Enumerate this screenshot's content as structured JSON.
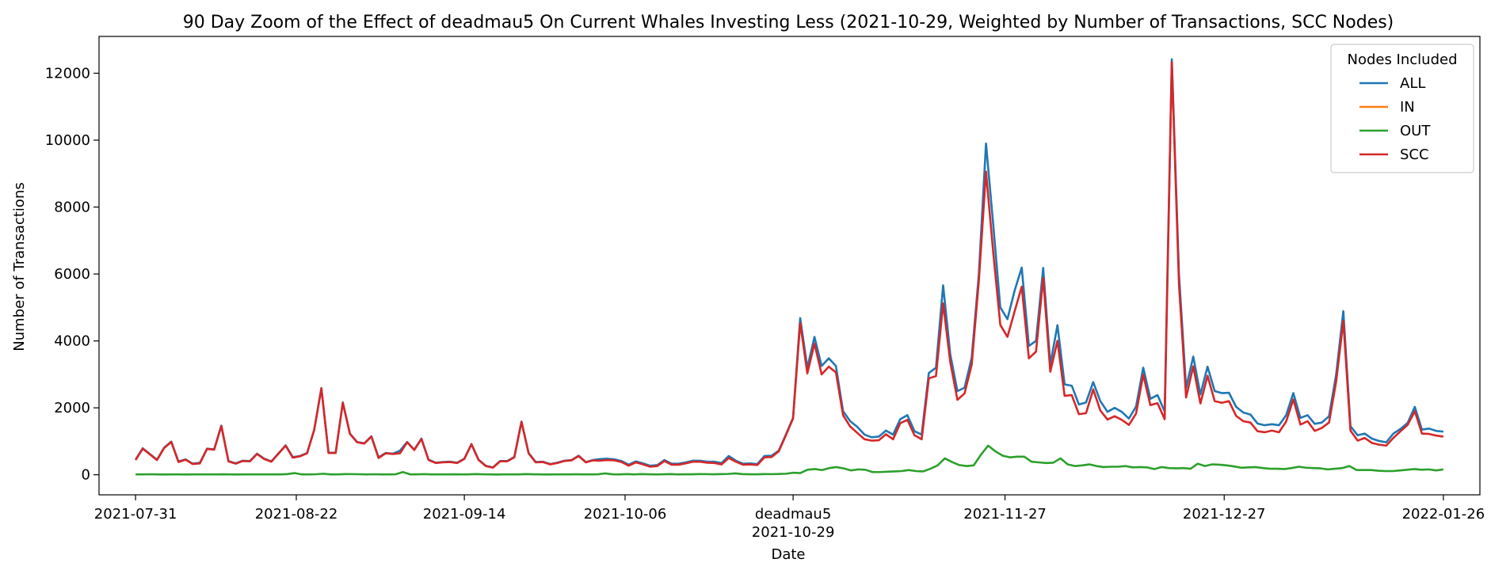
{
  "chart_data": {
    "type": "line",
    "title": "90 Day Zoom of the Effect of deadmau5 On Current Whales Investing Less (2021-10-29, Weighted by Number of Transactions, SCC Nodes)",
    "xlabel": "Date",
    "ylabel": "Number of Transactions",
    "x_start": "2021-07-31",
    "x_end": "2022-01-26",
    "xlim": [
      "2021-07-26",
      "2022-01-31"
    ],
    "ylim": [
      -600,
      13100
    ],
    "x_ticks": [
      {
        "date": "2021-07-31",
        "label": "2021-07-31"
      },
      {
        "date": "2021-08-22",
        "label": "2021-08-22"
      },
      {
        "date": "2021-09-14",
        "label": "2021-09-14"
      },
      {
        "date": "2021-10-06",
        "label": "2021-10-06"
      },
      {
        "date": "2021-10-29",
        "label": "deadmau5",
        "label2": "2021-10-29"
      },
      {
        "date": "2021-11-27",
        "label": "2021-11-27"
      },
      {
        "date": "2021-12-27",
        "label": "2021-12-27"
      },
      {
        "date": "2022-01-26",
        "label": "2022-01-26"
      }
    ],
    "y_ticks": [
      0,
      2000,
      4000,
      6000,
      8000,
      10000,
      12000
    ],
    "grid": false,
    "legend": {
      "title": "Nodes Included",
      "placement": "top-right"
    },
    "series": [
      {
        "name": "ALL",
        "color": "#1f77b4",
        "values": [
          450,
          790,
          620,
          450,
          810,
          990,
          400,
          460,
          330,
          360,
          780,
          760,
          1470,
          410,
          340,
          420,
          410,
          630,
          480,
          400,
          640,
          880,
          530,
          560,
          650,
          1350,
          2590,
          660,
          660,
          2160,
          1230,
          980,
          940,
          1150,
          520,
          650,
          630,
          720,
          980,
          750,
          1080,
          450,
          360,
          380,
          390,
          360,
          480,
          920,
          450,
          270,
          220,
          410,
          410,
          530,
          1590,
          650,
          380,
          390,
          320,
          360,
          420,
          440,
          570,
          380,
          440,
          470,
          480,
          460,
          410,
          300,
          400,
          340,
          270,
          290,
          440,
          330,
          330,
          370,
          420,
          420,
          390,
          390,
          350,
          560,
          420,
          330,
          340,
          320,
          560,
          570,
          720,
          1200,
          1700,
          4680,
          3200,
          4120,
          3250,
          3480,
          3250,
          1900,
          1600,
          1430,
          1200,
          1120,
          1140,
          1320,
          1200,
          1660,
          1780,
          1300,
          1200,
          3040,
          3200,
          5660,
          3600,
          2500,
          2600,
          3500,
          6000,
          9900,
          7500,
          5000,
          4650,
          5500,
          6190,
          3850,
          4000,
          6180,
          3300,
          4470,
          2700,
          2660,
          2100,
          2160,
          2770,
          2200,
          1880,
          2000,
          1880,
          1680,
          2040,
          3200,
          2270,
          2380,
          1890,
          12420,
          6000,
          2600,
          3530,
          2400,
          3230,
          2500,
          2440,
          2450,
          2030,
          1860,
          1800,
          1530,
          1480,
          1510,
          1480,
          1780,
          2440,
          1700,
          1780,
          1520,
          1560,
          1750,
          3000,
          4890,
          1450,
          1180,
          1230,
          1080,
          1010,
          970,
          1230,
          1370,
          1550,
          2030,
          1350,
          1380,
          1310,
          1290
        ]
      },
      {
        "name": "IN",
        "color": "#ff7f0e",
        "values": []
      },
      {
        "name": "OUT",
        "color": "#2ca02c",
        "values": [
          10,
          12,
          15,
          10,
          8,
          12,
          10,
          8,
          10,
          12,
          10,
          10,
          14,
          10,
          8,
          10,
          12,
          10,
          12,
          10,
          12,
          20,
          50,
          10,
          10,
          15,
          30,
          10,
          12,
          20,
          18,
          15,
          12,
          15,
          10,
          12,
          14,
          80,
          12,
          14,
          18,
          12,
          10,
          12,
          14,
          10,
          12,
          20,
          14,
          10,
          8,
          10,
          10,
          12,
          20,
          14,
          10,
          8,
          10,
          10,
          12,
          14,
          12,
          12,
          14,
          40,
          14,
          12,
          20,
          12,
          20,
          14,
          12,
          14,
          20,
          12,
          14,
          14,
          20,
          18,
          14,
          20,
          24,
          40,
          20,
          14,
          14,
          20,
          18,
          22,
          30,
          60,
          50,
          150,
          170,
          140,
          200,
          230,
          190,
          130,
          160,
          150,
          80,
          80,
          90,
          100,
          110,
          140,
          110,
          100,
          180,
          280,
          490,
          380,
          290,
          260,
          280,
          600,
          870,
          700,
          570,
          520,
          540,
          540,
          390,
          370,
          350,
          360,
          490,
          310,
          260,
          280,
          310,
          260,
          230,
          240,
          240,
          260,
          220,
          230,
          220,
          170,
          230,
          200,
          190,
          200,
          180,
          330,
          260,
          310,
          300,
          280,
          250,
          210,
          220,
          230,
          200,
          180,
          180,
          170,
          200,
          240,
          210,
          200,
          190,
          160,
          180,
          200,
          260,
          140,
          140,
          140,
          120,
          110,
          110,
          130,
          150,
          170,
          150,
          160,
          130,
          160
        ]
      },
      {
        "name": "SCC",
        "color": "#d62728",
        "values": [
          440,
          780,
          610,
          440,
          800,
          980,
          380,
          450,
          320,
          340,
          770,
          750,
          1460,
          400,
          330,
          410,
          400,
          620,
          470,
          390,
          630,
          870,
          510,
          550,
          640,
          1340,
          2580,
          650,
          650,
          2150,
          1220,
          970,
          930,
          1140,
          500,
          640,
          620,
          640,
          970,
          740,
          1070,
          440,
          350,
          370,
          380,
          350,
          470,
          910,
          440,
          260,
          210,
          400,
          400,
          520,
          1580,
          640,
          370,
          380,
          310,
          350,
          410,
          430,
          560,
          370,
          430,
          420,
          440,
          430,
          380,
          270,
          370,
          310,
          240,
          260,
          410,
          300,
          300,
          340,
          390,
          390,
          360,
          350,
          310,
          500,
          390,
          300,
          310,
          290,
          520,
          530,
          700,
          1180,
          1680,
          4540,
          3030,
          3920,
          3000,
          3230,
          3060,
          1780,
          1440,
          1250,
          1060,
          1020,
          1030,
          1210,
          1060,
          1540,
          1640,
          1180,
          1060,
          2880,
          2950,
          5120,
          3370,
          2240,
          2430,
          3290,
          5800,
          9060,
          6670,
          4480,
          4120,
          4880,
          5620,
          3480,
          3680,
          5880,
          3080,
          4000,
          2360,
          2380,
          1810,
          1840,
          2550,
          1920,
          1650,
          1750,
          1640,
          1490,
          1830,
          2990,
          2080,
          2140,
          1660,
          12340,
          5700,
          2310,
          3240,
          2130,
          2960,
          2200,
          2150,
          2200,
          1760,
          1600,
          1560,
          1300,
          1270,
          1320,
          1270,
          1590,
          2250,
          1500,
          1600,
          1310,
          1400,
          1560,
          2790,
          4600,
          1320,
          1020,
          1100,
          950,
          900,
          870,
          1100,
          1300,
          1490,
          1900,
          1230,
          1220,
          1170,
          1140
        ]
      }
    ]
  }
}
